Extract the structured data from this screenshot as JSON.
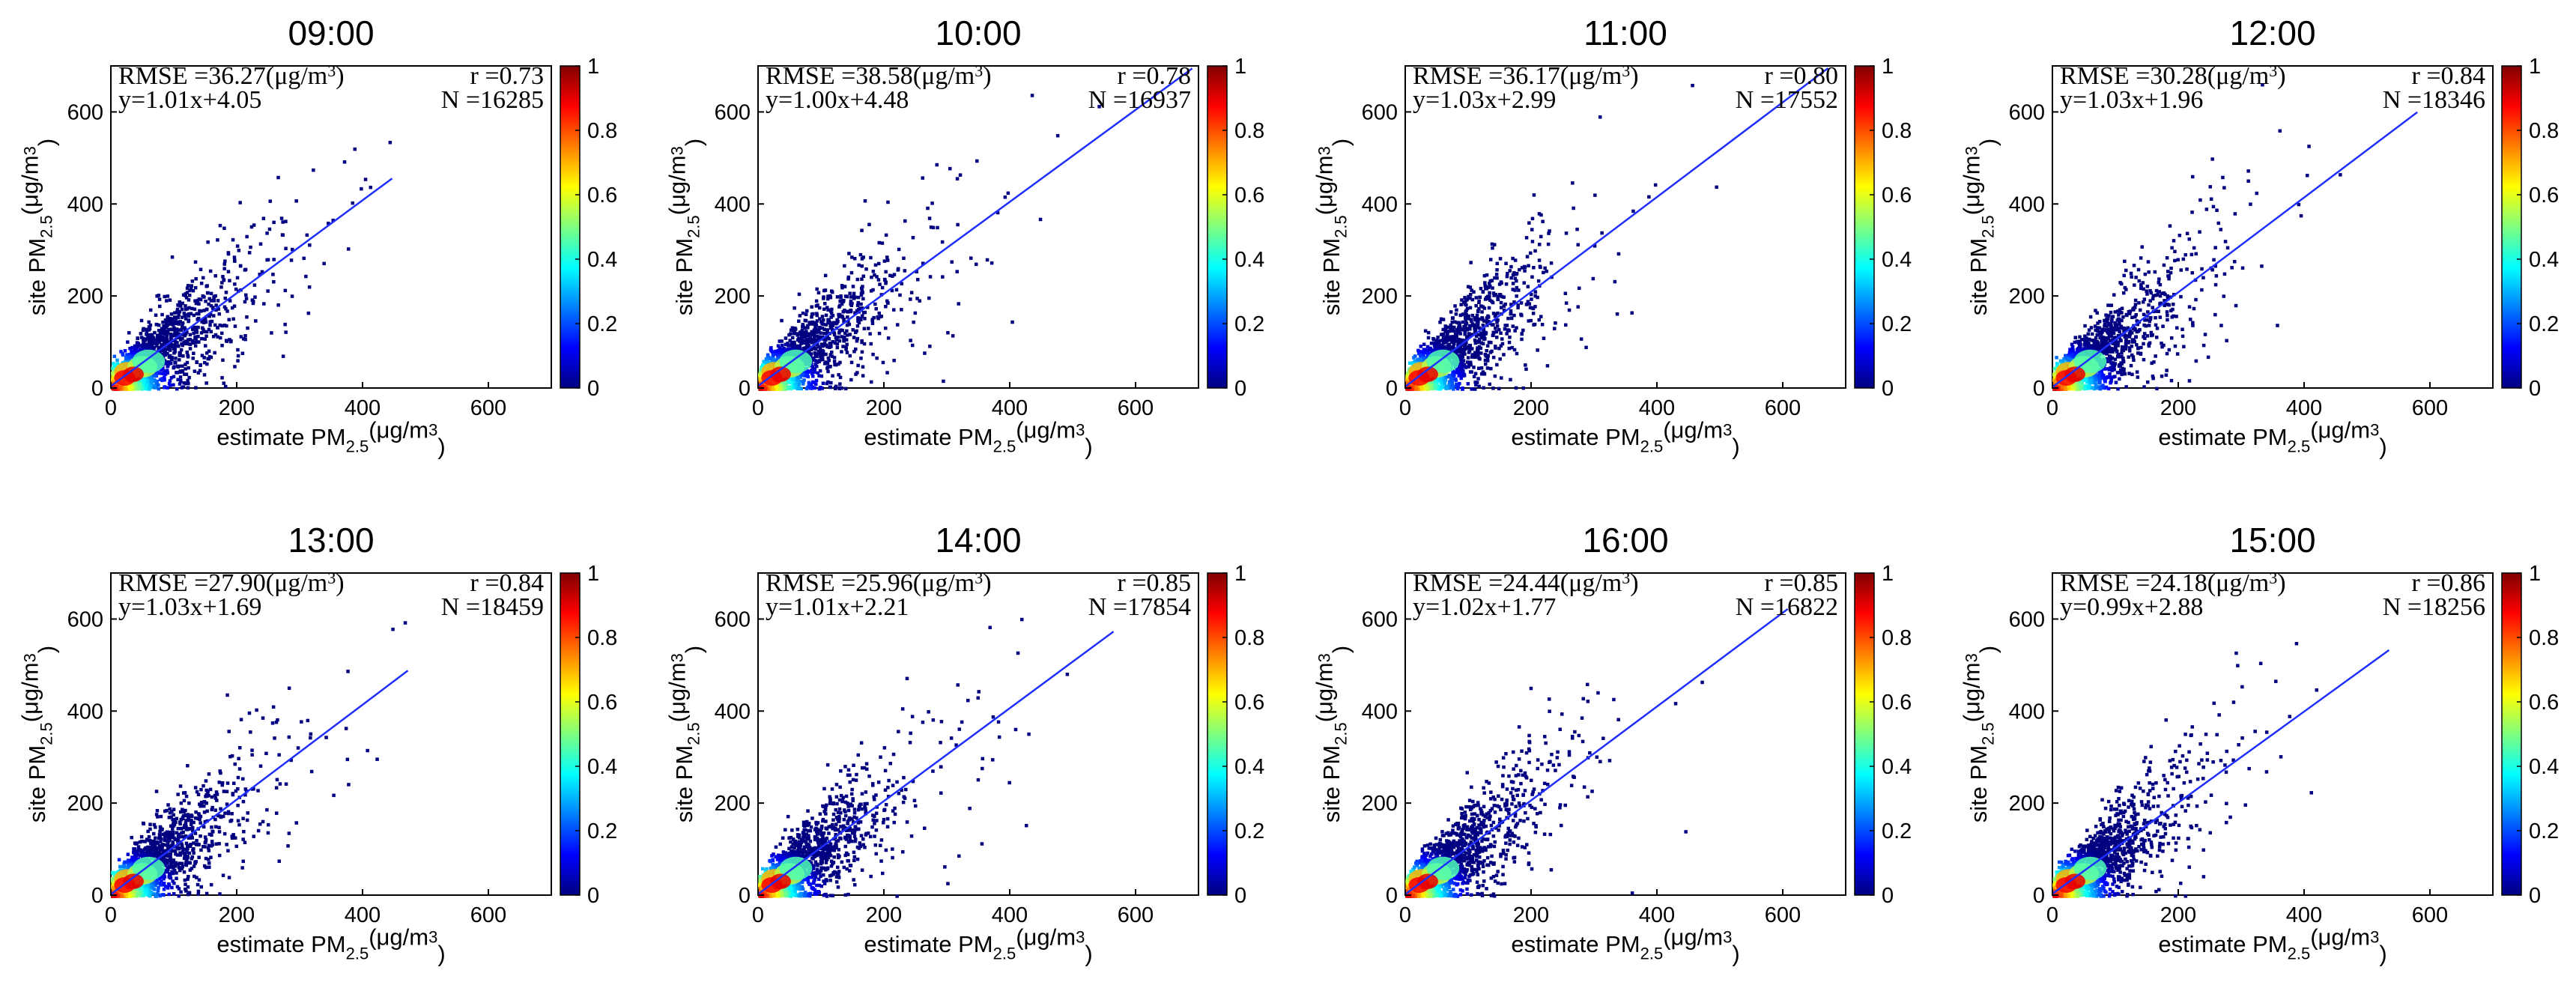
{
  "colorbar": {
    "ticks": [
      "0",
      "0.2",
      "0.4",
      "0.6",
      "0.8",
      "1"
    ],
    "colors": [
      "#00007f",
      "#0000ff",
      "#007fff",
      "#00ffff",
      "#7fff7f",
      "#ffff00",
      "#ff7f00",
      "#ff0000",
      "#7f0000"
    ]
  },
  "line_color": "#1f2fff",
  "chart_data": [
    {
      "type": "scatter",
      "title": "09:00",
      "xlabel": "estimate PM2.5(μg/m3)",
      "ylabel": "site PM2.5(μg/m3)",
      "xlim": [
        0,
        700
      ],
      "ylim": [
        0,
        700
      ],
      "xticks": [
        "0",
        "200",
        "400",
        "600"
      ],
      "yticks": [
        "0",
        "200",
        "400",
        "600"
      ],
      "rmse": "RMSE =36.27(μg/m3)",
      "r": "r =0.73",
      "equation": "y=1.01x+4.05",
      "n": "N =16285",
      "slope": 1.01,
      "intercept": 4.05,
      "max_x": 447
    },
    {
      "type": "scatter",
      "title": "10:00",
      "xlabel": "estimate PM2.5(μg/m3)",
      "ylabel": "site PM2.5(μg/m3)",
      "xlim": [
        0,
        700
      ],
      "ylim": [
        0,
        700
      ],
      "xticks": [
        "0",
        "200",
        "400",
        "600"
      ],
      "yticks": [
        "0",
        "200",
        "400",
        "600"
      ],
      "rmse": "RMSE =38.58(μg/m3)",
      "r": "r =0.78",
      "equation": "y=1.00x+4.48",
      "n": "N =16937",
      "slope": 1.0,
      "intercept": 4.48,
      "max_x": 690
    },
    {
      "type": "scatter",
      "title": "11:00",
      "xlabel": "estimate PM2.5(μg/m3)",
      "ylabel": "site PM2.5(μg/m3)",
      "xlim": [
        0,
        700
      ],
      "ylim": [
        0,
        700
      ],
      "xticks": [
        "0",
        "200",
        "400",
        "600"
      ],
      "yticks": [
        "0",
        "200",
        "400",
        "600"
      ],
      "rmse": "RMSE =36.17(μg/m3)",
      "r": "r =0.80",
      "equation": "y=1.03x+2.99",
      "n": "N =17552",
      "slope": 1.03,
      "intercept": 2.99,
      "max_x": 672
    },
    {
      "type": "scatter",
      "title": "12:00",
      "xlabel": "estimate PM2.5(μg/m3)",
      "ylabel": "site PM2.5(μg/m3)",
      "xlim": [
        0,
        700
      ],
      "ylim": [
        0,
        700
      ],
      "xticks": [
        "0",
        "200",
        "400",
        "600"
      ],
      "yticks": [
        "0",
        "200",
        "400",
        "600"
      ],
      "rmse": "RMSE =30.28(μg/m3)",
      "r": "r =0.84",
      "equation": "y=1.03x+1.96",
      "n": "N =18346",
      "slope": 1.03,
      "intercept": 1.96,
      "max_x": 580
    },
    {
      "type": "scatter",
      "title": "13:00",
      "xlabel": "estimate PM2.5(μg/m3)",
      "ylabel": "site PM2.5(μg/m3)",
      "xlim": [
        0,
        700
      ],
      "ylim": [
        0,
        700
      ],
      "xticks": [
        "0",
        "200",
        "400",
        "600"
      ],
      "yticks": [
        "0",
        "200",
        "400",
        "600"
      ],
      "rmse": "RMSE =27.90(μg/m3)",
      "r": "r =0.84",
      "equation": "y=1.03x+1.69",
      "n": "N =18459",
      "slope": 1.03,
      "intercept": 1.69,
      "max_x": 472
    },
    {
      "type": "scatter",
      "title": "14:00",
      "xlabel": "estimate PM2.5(μg/m3)",
      "ylabel": "site PM2.5(μg/m3)",
      "xlim": [
        0,
        700
      ],
      "ylim": [
        0,
        700
      ],
      "xticks": [
        "0",
        "200",
        "400",
        "600"
      ],
      "yticks": [
        "0",
        "200",
        "400",
        "600"
      ],
      "rmse": "RMSE =25.96(μg/m3)",
      "r": "r =0.85",
      "equation": "y=1.01x+2.21",
      "n": "N =17854",
      "slope": 1.01,
      "intercept": 2.21,
      "max_x": 565
    },
    {
      "type": "scatter",
      "title": "16:00",
      "xlabel": "estimate PM2.5(μg/m3)",
      "ylabel": "site PM2.5(μg/m3)",
      "xlim": [
        0,
        700
      ],
      "ylim": [
        0,
        700
      ],
      "xticks": [
        "0",
        "200",
        "400",
        "600"
      ],
      "yticks": [
        "0",
        "200",
        "400",
        "600"
      ],
      "rmse": "RMSE =24.44(μg/m3)",
      "r": "r =0.85",
      "equation": "y=1.02x+1.77",
      "n": "N =16822",
      "slope": 1.02,
      "intercept": 1.77,
      "max_x": 608
    },
    {
      "type": "scatter",
      "title": "15:00",
      "xlabel": "estimate PM2.5(μg/m3)",
      "ylabel": "site PM2.5(μg/m3)",
      "xlim": [
        0,
        700
      ],
      "ylim": [
        0,
        700
      ],
      "xticks": [
        "0",
        "200",
        "400",
        "600"
      ],
      "yticks": [
        "0",
        "200",
        "400",
        "600"
      ],
      "rmse": "RMSE =24.18(μg/m3)",
      "r": "r =0.86",
      "equation": "y=0.99x+2.88",
      "n": "N =18256",
      "slope": 0.99,
      "intercept": 2.88,
      "max_x": 535
    }
  ]
}
